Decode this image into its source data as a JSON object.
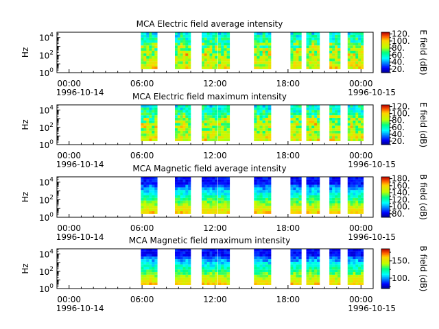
{
  "chart_data": [
    {
      "type": "heatmap",
      "title": "MCA  Electric field average intensity",
      "ylabel": "Hz",
      "yscale": "log",
      "ylim": [
        1,
        40000
      ],
      "y_ticks": [
        {
          "base": "10",
          "exp": "0"
        },
        {
          "base": "10",
          "exp": "2"
        },
        {
          "base": "10",
          "exp": "4"
        }
      ],
      "x_ticks": [
        {
          "time": "00:00",
          "date": "1996-10-14"
        },
        {
          "time": "06:00",
          "date": ""
        },
        {
          "time": "12:00",
          "date": ""
        },
        {
          "time": "18:00",
          "date": ""
        },
        {
          "time": "00:00",
          "date": "1996-10-15"
        }
      ],
      "xlim_hours": [
        -1,
        25
      ],
      "data_blocks_hours": [
        [
          5.9,
          7.25
        ],
        [
          8.7,
          10
        ],
        [
          10.9,
          12.2
        ],
        [
          12.25,
          13.2
        ],
        [
          15.2,
          16.6
        ],
        [
          18.2,
          19.1
        ],
        [
          19.5,
          20.6
        ],
        [
          21.4,
          22.3
        ],
        [
          22.9,
          24.2
        ]
      ],
      "field": "electric",
      "colorbar": {
        "label": "E field (dB)",
        "ticks": [
          "20.",
          "40.",
          "60.",
          "80.",
          "100.",
          "120."
        ],
        "range": [
          10,
          125
        ]
      }
    },
    {
      "type": "heatmap",
      "title": "MCA  Electric field maximum intensity",
      "ylabel": "Hz",
      "yscale": "log",
      "ylim": [
        1,
        40000
      ],
      "y_ticks": [
        {
          "base": "10",
          "exp": "0"
        },
        {
          "base": "10",
          "exp": "2"
        },
        {
          "base": "10",
          "exp": "4"
        }
      ],
      "x_ticks": [
        {
          "time": "00:00",
          "date": "1996-10-14"
        },
        {
          "time": "06:00",
          "date": ""
        },
        {
          "time": "12:00",
          "date": ""
        },
        {
          "time": "18:00",
          "date": ""
        },
        {
          "time": "00:00",
          "date": "1996-10-15"
        }
      ],
      "xlim_hours": [
        -1,
        25
      ],
      "data_blocks_hours": [
        [
          5.9,
          7.25
        ],
        [
          8.7,
          10
        ],
        [
          10.9,
          12.2
        ],
        [
          12.25,
          13.2
        ],
        [
          15.2,
          16.6
        ],
        [
          18.2,
          19.1
        ],
        [
          19.5,
          20.6
        ],
        [
          21.4,
          22.3
        ],
        [
          22.9,
          24.2
        ]
      ],
      "field": "electric",
      "colorbar": {
        "label": "E field (dB)",
        "ticks": [
          "20.",
          "40.",
          "60.",
          "80.",
          "100.",
          "120."
        ],
        "range": [
          10,
          125
        ]
      }
    },
    {
      "type": "heatmap",
      "title": "MCA  Magnetic field average intensity",
      "ylabel": "Hz",
      "yscale": "log",
      "ylim": [
        1,
        40000
      ],
      "y_ticks": [
        {
          "base": "10",
          "exp": "0"
        },
        {
          "base": "10",
          "exp": "2"
        },
        {
          "base": "10",
          "exp": "4"
        }
      ],
      "x_ticks": [
        {
          "time": "00:00",
          "date": "1996-10-14"
        },
        {
          "time": "06:00",
          "date": ""
        },
        {
          "time": "12:00",
          "date": ""
        },
        {
          "time": "18:00",
          "date": ""
        },
        {
          "time": "00:00",
          "date": "1996-10-15"
        }
      ],
      "xlim_hours": [
        -1,
        25
      ],
      "data_blocks_hours": [
        [
          5.9,
          7.25
        ],
        [
          8.7,
          10
        ],
        [
          10.9,
          12.2
        ],
        [
          12.25,
          13.2
        ],
        [
          15.2,
          16.6
        ],
        [
          18.2,
          19.1
        ],
        [
          19.5,
          20.6
        ],
        [
          21.4,
          22.3
        ],
        [
          22.9,
          24.2
        ]
      ],
      "field": "magnetic",
      "colorbar": {
        "label": "B field (dB)",
        "ticks": [
          "80.",
          "100.",
          "120.",
          "140.",
          "160.",
          "180."
        ],
        "range": [
          70,
          185
        ]
      }
    },
    {
      "type": "heatmap",
      "title": "MCA  Magnetic field maximum intensity",
      "ylabel": "Hz",
      "yscale": "log",
      "ylim": [
        1,
        40000
      ],
      "y_ticks": [
        {
          "base": "10",
          "exp": "0"
        },
        {
          "base": "10",
          "exp": "2"
        },
        {
          "base": "10",
          "exp": "4"
        }
      ],
      "x_ticks": [
        {
          "time": "00:00",
          "date": "1996-10-14"
        },
        {
          "time": "06:00",
          "date": ""
        },
        {
          "time": "12:00",
          "date": ""
        },
        {
          "time": "18:00",
          "date": ""
        },
        {
          "time": "00:00",
          "date": "1996-10-15"
        }
      ],
      "xlim_hours": [
        -1,
        25
      ],
      "data_blocks_hours": [
        [
          5.9,
          7.25
        ],
        [
          8.7,
          10
        ],
        [
          10.9,
          12.2
        ],
        [
          12.25,
          13.2
        ],
        [
          15.2,
          16.6
        ],
        [
          18.2,
          19.1
        ],
        [
          19.5,
          20.6
        ],
        [
          21.4,
          22.3
        ],
        [
          22.9,
          24.2
        ]
      ],
      "field": "magnetic",
      "colorbar": {
        "label": "B field (dB)",
        "ticks": [
          "100.",
          "150."
        ],
        "range": [
          70,
          185
        ]
      }
    }
  ]
}
